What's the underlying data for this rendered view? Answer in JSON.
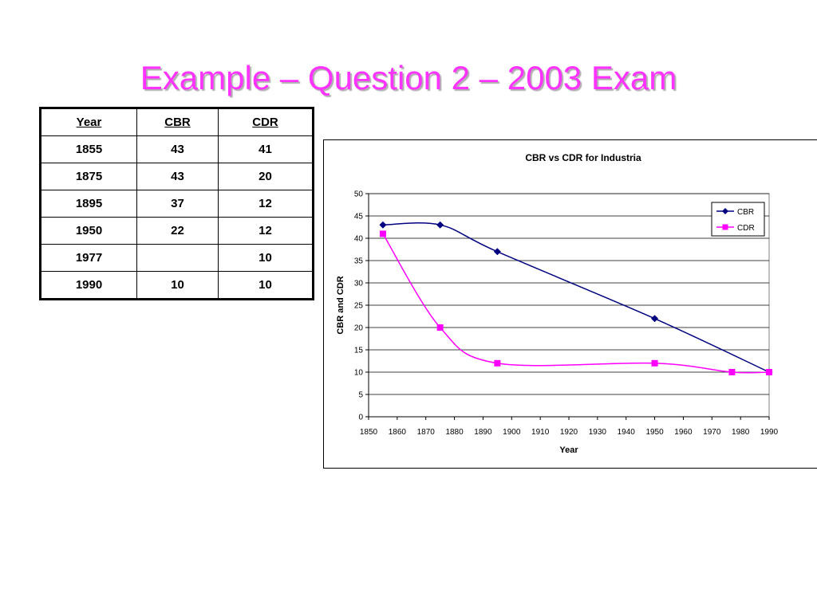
{
  "slide": {
    "title": "Example – Question 2 – 2003 Exam"
  },
  "table": {
    "headers": [
      "Year",
      "CBR",
      "CDR"
    ],
    "rows": [
      [
        "1855",
        "43",
        "41"
      ],
      [
        "1875",
        "43",
        "20"
      ],
      [
        "1895",
        "37",
        "12"
      ],
      [
        "1950",
        "22",
        "12"
      ],
      [
        "1977",
        "",
        "10"
      ],
      [
        "1990",
        "10",
        "10"
      ]
    ]
  },
  "chart_data": {
    "type": "line",
    "title": "CBR vs CDR for Industria",
    "xlabel": "Year",
    "ylabel": "CBR and CDR",
    "xlim": [
      1850,
      1990
    ],
    "ylim": [
      0,
      50
    ],
    "x_ticks": [
      1850,
      1860,
      1870,
      1880,
      1890,
      1900,
      1910,
      1920,
      1930,
      1940,
      1950,
      1960,
      1970,
      1980,
      1990
    ],
    "y_ticks": [
      0,
      5,
      10,
      15,
      20,
      25,
      30,
      35,
      40,
      45,
      50
    ],
    "grid": "horizontal",
    "legend_position": "top-right",
    "series": [
      {
        "name": "CBR",
        "color": "#000080",
        "marker": "diamond",
        "smooth": true,
        "x": [
          1855,
          1875,
          1895,
          1950,
          1990
        ],
        "y": [
          43,
          43,
          37,
          22,
          10
        ]
      },
      {
        "name": "CDR",
        "color": "#ff00ff",
        "marker": "square",
        "smooth": true,
        "x": [
          1855,
          1875,
          1895,
          1950,
          1977,
          1990
        ],
        "y": [
          41,
          20,
          12,
          12,
          10,
          10
        ]
      }
    ]
  }
}
